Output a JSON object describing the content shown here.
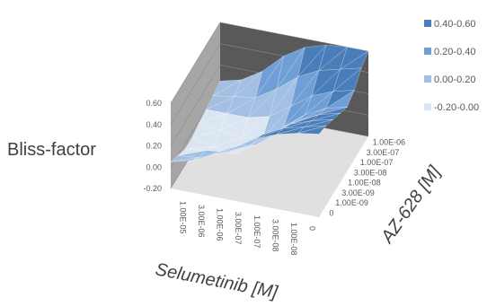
{
  "chart_data": {
    "type": "surface",
    "zlabel": "Bliss-factor",
    "xlabel": "Selumetinib [M]",
    "ylabel": "AZ-628 [M]",
    "zticks": [
      "-0.20",
      "0.00",
      "0.20",
      "0.40",
      "0.60"
    ],
    "zlim": [
      -0.2,
      0.6
    ],
    "x_ticks": [
      "1.00E-05",
      "3.00E-06",
      "1.00E-06",
      "3.00E-07",
      "1.00E-07",
      "3.00E-08",
      "1.00E-08",
      "0"
    ],
    "y_ticks": [
      "0",
      "1.00E-09",
      "3.00E-09",
      "1.00E-08",
      "3.00E-08",
      "1.00E-07",
      "3.00E-07",
      "1.00E-06"
    ],
    "grid_z": [
      [
        0.05,
        0.0,
        -0.05,
        -0.05,
        -0.02,
        0.0,
        0.02,
        0.05
      ],
      [
        0.1,
        0.02,
        -0.02,
        -0.1,
        -0.05,
        0.0,
        0.05,
        0.1
      ],
      [
        0.2,
        0.1,
        0.0,
        -0.12,
        -0.08,
        0.0,
        0.08,
        0.22
      ],
      [
        0.3,
        0.22,
        0.1,
        0.0,
        -0.05,
        0.05,
        0.2,
        0.4
      ],
      [
        0.42,
        0.35,
        0.25,
        0.15,
        0.1,
        0.18,
        0.35,
        0.52
      ],
      [
        0.5,
        0.45,
        0.38,
        0.3,
        0.25,
        0.32,
        0.45,
        0.58
      ],
      [
        0.55,
        0.5,
        0.45,
        0.4,
        0.35,
        0.4,
        0.5,
        0.6
      ],
      [
        0.58,
        0.55,
        0.5,
        0.45,
        0.4,
        0.45,
        0.55,
        0.6
      ]
    ],
    "legend": {
      "position": "top-right",
      "entries": [
        {
          "label": "0.40-0.60",
          "color": "#4a7ebb"
        },
        {
          "label": "0.20-0.40",
          "color": "#6f9fd6"
        },
        {
          "label": "0.00-0.20",
          "color": "#a3bfe3"
        },
        {
          "label": "-0.20-0.00",
          "color": "#dce6f2"
        }
      ]
    },
    "colors": {
      "wall": "#a6a6a6",
      "wall_dark": "#595959",
      "floor": "#e0e0e0"
    }
  }
}
